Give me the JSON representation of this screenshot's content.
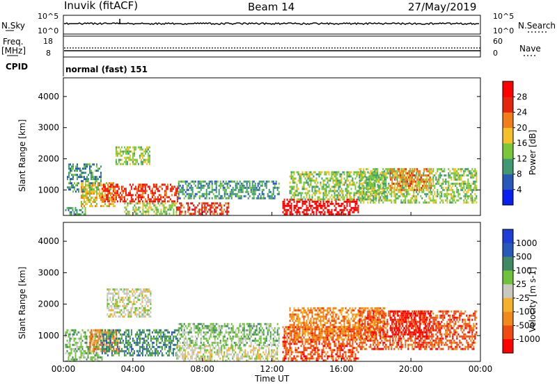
{
  "header": {
    "station": "Inuvik (fitACF)",
    "beam": "Beam 14",
    "date": "27/May/2019"
  },
  "nsky_panel": {
    "left_label": "N.Sky",
    "left_tick_top": "10^5",
    "left_tick_bottom": "10^0",
    "right_label": "N.Search",
    "right_tick_top": "10^5",
    "right_tick_bottom": "10^0"
  },
  "freq_panel": {
    "label_line1": "Freq.",
    "label_line2": "[MHz]",
    "left_tick_top": "18",
    "left_tick_bottom": "8",
    "right_label": "Nave",
    "right_tick_top": "60",
    "right_tick_bottom": "0"
  },
  "cpid": {
    "label": "CPID",
    "value": "normal (fast) 151"
  },
  "chart_data": [
    {
      "type": "heatmap",
      "panel": "power",
      "ylabel": "Slant Range [km]",
      "ylim": [
        180,
        4600
      ],
      "yticks": [
        "1000",
        "2000",
        "3000",
        "4000"
      ],
      "colorbar_label": "Power [dB]",
      "colorbar_ticks": [
        "4",
        "8",
        "12",
        "16",
        "20",
        "24",
        "28"
      ],
      "colorbar_colors": [
        "#0a20f0",
        "#2a58b8",
        "#3f9a72",
        "#79c83c",
        "#f4c12c",
        "#f07f1a",
        "#e6250f",
        "#ff0000"
      ],
      "regions": [
        {
          "t0": 0.1,
          "t1": 1.3,
          "r0": 180,
          "r1": 450,
          "level": 2
        },
        {
          "t0": 0.2,
          "t1": 2.2,
          "r0": 950,
          "r1": 1850,
          "level": 2
        },
        {
          "t0": 1.0,
          "t1": 3.0,
          "r0": 450,
          "r1": 1250,
          "level": 4
        },
        {
          "t0": 2.2,
          "t1": 6.6,
          "r0": 600,
          "r1": 1200,
          "level": 6
        },
        {
          "t0": 3.0,
          "t1": 5.0,
          "r0": 1800,
          "r1": 2400,
          "level": 3
        },
        {
          "t0": 3.5,
          "t1": 6.5,
          "r0": 180,
          "r1": 600,
          "level": 3
        },
        {
          "t0": 6.5,
          "t1": 9.5,
          "r0": 180,
          "r1": 600,
          "level": 6
        },
        {
          "t0": 6.6,
          "t1": 12.4,
          "r0": 700,
          "r1": 1300,
          "level": 2
        },
        {
          "t0": 12.6,
          "t1": 17.0,
          "r0": 200,
          "r1": 720,
          "level": 7
        },
        {
          "t0": 13.0,
          "t1": 18.5,
          "r0": 700,
          "r1": 1600,
          "level": 3
        },
        {
          "t0": 17.0,
          "t1": 23.8,
          "r0": 600,
          "r1": 1700,
          "level": 3
        },
        {
          "t0": 18.8,
          "t1": 21.2,
          "r0": 1000,
          "r1": 1700,
          "level": 5
        }
      ]
    },
    {
      "type": "heatmap",
      "panel": "velocity",
      "ylabel": "Slant Range [km]",
      "ylim": [
        180,
        4600
      ],
      "yticks": [
        "1000",
        "2000",
        "3000",
        "4000"
      ],
      "xlabel": "Time UT",
      "xticks": [
        "00:00",
        "04:00",
        "08:00",
        "12:00",
        "16:00",
        "20:00",
        "00:00"
      ],
      "xlim": [
        0,
        24
      ],
      "colorbar_label": "Velocity [m s-1]",
      "colorbar_ticks": [
        "1000",
        "500",
        "100",
        "25",
        "-25",
        "-100",
        "-500",
        "-1000"
      ],
      "colorbar_colors": [
        "#1f3ed6",
        "#2a58b8",
        "#3f8a62",
        "#6fc23a",
        "#c9c9c0",
        "#f4b22c",
        "#f08a1a",
        "#ee4a12",
        "#ff0000"
      ],
      "regions": [
        {
          "t0": 0.1,
          "t1": 2.2,
          "r0": 180,
          "r1": 1200,
          "level": 3
        },
        {
          "t0": 1.5,
          "t1": 3.2,
          "r0": 500,
          "r1": 1200,
          "level": 6
        },
        {
          "t0": 2.2,
          "t1": 6.6,
          "r0": 400,
          "r1": 1200,
          "level": 2
        },
        {
          "t0": 2.5,
          "t1": 5.0,
          "r0": 1600,
          "r1": 2500,
          "level": 4
        },
        {
          "t0": 6.5,
          "t1": 12.4,
          "r0": 180,
          "r1": 700,
          "level": 4
        },
        {
          "t0": 6.6,
          "t1": 12.4,
          "r0": 700,
          "r1": 1400,
          "level": 3
        },
        {
          "t0": 12.6,
          "t1": 17.0,
          "r0": 200,
          "r1": 1300,
          "level": 7
        },
        {
          "t0": 13.0,
          "t1": 18.5,
          "r0": 900,
          "r1": 1900,
          "level": 6
        },
        {
          "t0": 17.0,
          "t1": 23.8,
          "r0": 600,
          "r1": 1800,
          "level": 7
        },
        {
          "t0": 18.8,
          "t1": 21.2,
          "r0": 1000,
          "r1": 1800,
          "level": 8
        }
      ]
    }
  ]
}
